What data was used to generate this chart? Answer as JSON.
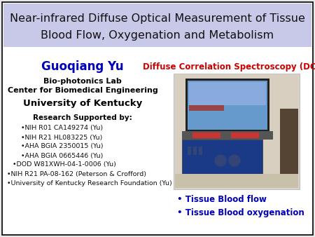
{
  "title_line1": "Near-infrared Diffuse Optical Measurement of Tissue",
  "title_line2": "Blood Flow, Oxygenation and Metabolism",
  "title_bg_color": "#c8c8e8",
  "title_font_size": 11.5,
  "author_name": "Guoqiang Yu",
  "author_color": "#0000bb",
  "author_font_size": 12,
  "dcs_label": "Diffuse Correlation Spectroscopy (DCS)",
  "dcs_color": "#cc0000",
  "dcs_font_size": 8.5,
  "lab_line1": "Bio-photonics Lab",
  "lab_line2": "Center for Biomedical Engineering",
  "lab_line3": "University of Kentucky",
  "lab_font_size1": 8,
  "lab_font_size2": 8,
  "lab_font_size3": 9.5,
  "research_header": "Research Supported by:",
  "research_items": [
    "•NIH R01 CA149274 (Yu)",
    "•NIH R21 HL083225 (Yu)",
    "•AHA BGIA 2350015 (Yu)",
    "•AHA BGIA 0665446 (Yu)",
    "•DOD W81XWH-04-1-0006 (Yu)",
    "•NIH R21 PA-08-162 (Peterson & Crofford)",
    "•University of Kentucky Research Foundation (Yu)"
  ],
  "research_font_size": 6.8,
  "research_header_font_size": 7.5,
  "bullet1": "• Tissue Blood flow",
  "bullet2": "• Tissue Blood oxygenation",
  "bullet_color": "#0000bb",
  "bullet_font_size": 8.5,
  "bg_color": "#ffffff",
  "border_color": "#000000",
  "outer_bg": "#e8e8e8"
}
